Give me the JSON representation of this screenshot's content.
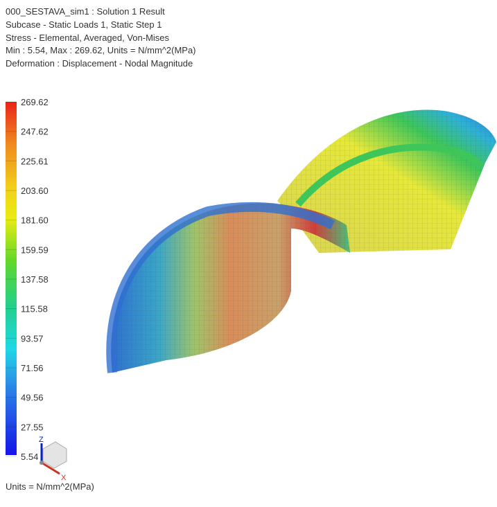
{
  "header": {
    "lines": [
      "000_SESTAVA_sim1 : Solution 1 Result",
      "Subcase - Static Loads 1, Static Step 1",
      "Stress - Elemental, Averaged, Von-Mises",
      "Min : 5.54, Max : 269.62, Units = N/mm^2(MPa)",
      "Deformation : Displacement - Nodal Magnitude"
    ]
  },
  "legend": {
    "labels": [
      "269.62",
      "247.62",
      "225.61",
      "203.60",
      "181.60",
      "159.59",
      "137.58",
      "115.58",
      "93.57",
      "71.56",
      "49.56",
      "27.55",
      "5.54"
    ],
    "units": "Units = N/mm^2(MPa)"
  },
  "triad": {
    "z": "Z",
    "x": "X"
  }
}
